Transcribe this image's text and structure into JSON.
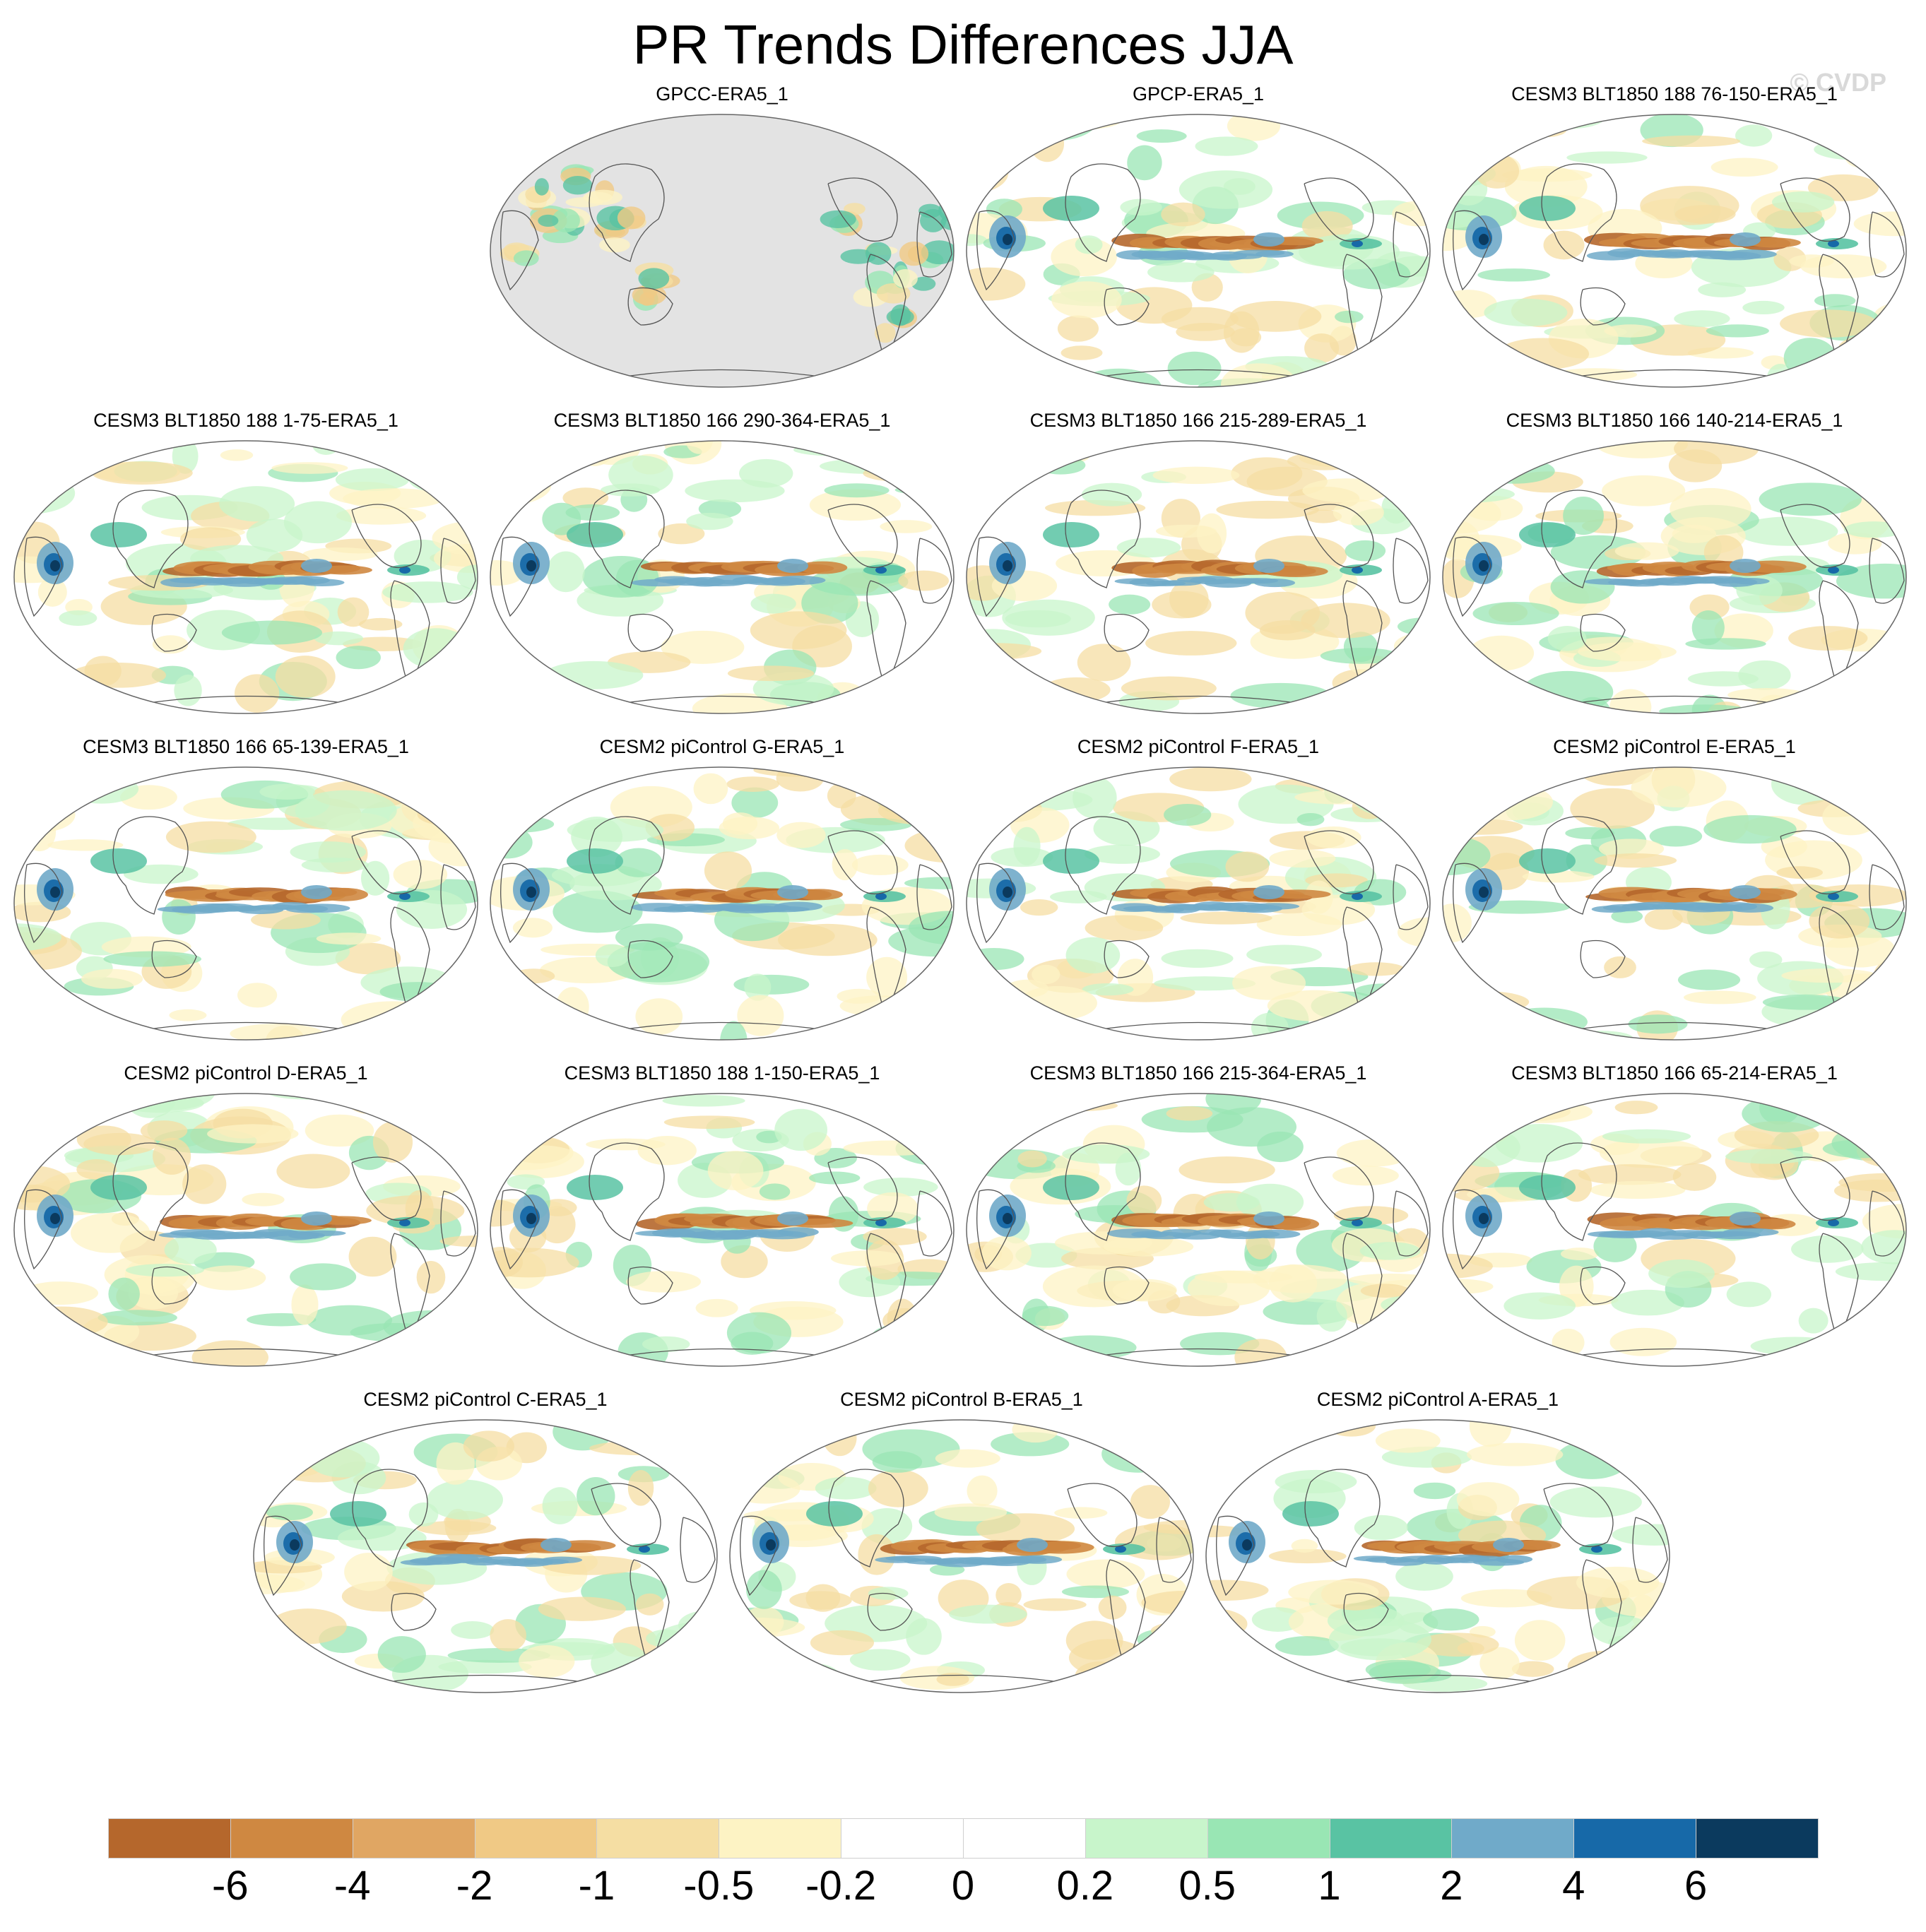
{
  "title": "PR Trends Differences JJA",
  "watermark": "© CVDP",
  "chart_data": {
    "type": "heatmap",
    "title": "PR Trends Differences JJA",
    "projection": "Robinson, centered on the Pacific",
    "panels": [
      {
        "title": "GPCC-ERA5_1",
        "land_only": true
      },
      {
        "title": "GPCP-ERA5_1"
      },
      {
        "title": "CESM3 BLT1850 188 76-150-ERA5_1"
      },
      {
        "title": "CESM3 BLT1850 188 1-75-ERA5_1"
      },
      {
        "title": "CESM3 BLT1850 166 290-364-ERA5_1"
      },
      {
        "title": "CESM3 BLT1850 166 215-289-ERA5_1"
      },
      {
        "title": "CESM3 BLT1850 166 140-214-ERA5_1"
      },
      {
        "title": "CESM3 BLT1850 166 65-139-ERA5_1"
      },
      {
        "title": "CESM2 piControl G-ERA5_1"
      },
      {
        "title": "CESM2 piControl F-ERA5_1"
      },
      {
        "title": "CESM2 piControl E-ERA5_1"
      },
      {
        "title": "CESM2 piControl D-ERA5_1"
      },
      {
        "title": "CESM3 BLT1850 188 1-150-ERA5_1"
      },
      {
        "title": "CESM3 BLT1850 166 215-364-ERA5_1"
      },
      {
        "title": "CESM3 BLT1850 166 65-214-ERA5_1"
      },
      {
        "title": "CESM2 piControl C-ERA5_1"
      },
      {
        "title": "CESM2 piControl B-ERA5_1"
      },
      {
        "title": "CESM2 piControl A-ERA5_1"
      }
    ],
    "colorbar": {
      "tick_labels": [
        "-6",
        "-4",
        "-2",
        "-1",
        "-0.5",
        "-0.2",
        "0",
        "0.2",
        "0.5",
        "1",
        "2",
        "4",
        "6"
      ],
      "colors": [
        "#b5672c",
        "#cf8841",
        "#e0a663",
        "#f0c985",
        "#f5dea3",
        "#fdf3c4",
        "#ffffff",
        "#ffffff",
        "#c8f5cb",
        "#99e6b4",
        "#59c3a3",
        "#70aac9",
        "#1769a8",
        "#0b3a5e"
      ]
    }
  }
}
